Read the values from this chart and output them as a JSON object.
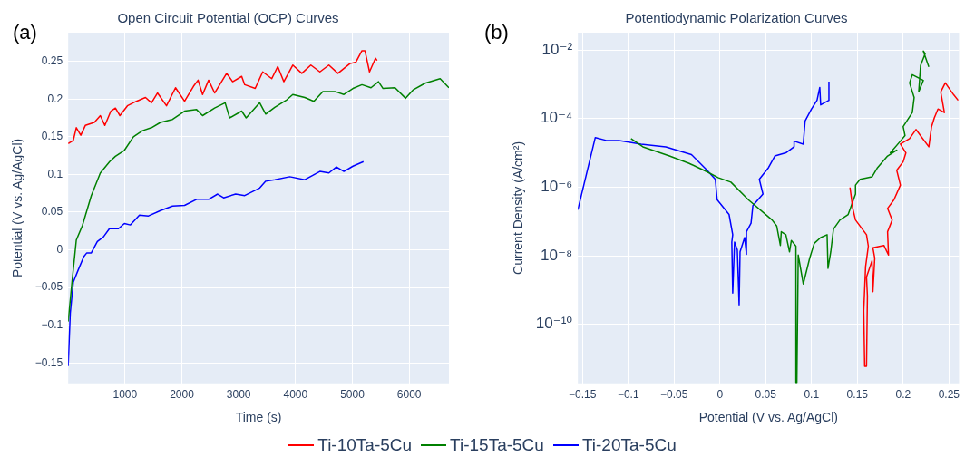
{
  "chart_data": [
    {
      "type": "line",
      "title": "Open Circuit Potential (OCP) Curves",
      "xlabel": "Time (s)",
      "ylabel": "Potential (V vs. Ag/AgCl)",
      "annotations": [
        "(a)"
      ],
      "xlim": [
        0,
        6700
      ],
      "ylim": [
        -0.177,
        0.288
      ],
      "xticks": [
        1000,
        2000,
        3000,
        4000,
        5000,
        6000
      ],
      "yticks": [
        {
          "value": -0.15,
          "label": "−0.15"
        },
        {
          "value": -0.1,
          "label": "−0.1"
        },
        {
          "value": -0.05,
          "label": "−0.05"
        },
        0,
        0.05,
        0.1,
        0.15,
        0.2,
        0.25
      ],
      "grid": true,
      "legend": "bottom",
      "series": [
        {
          "name": "Ti-10Ta-5Cu",
          "color": "#ff0000",
          "x": [
            0,
            90,
            143,
            222,
            302,
            460,
            566,
            646,
            751,
            831,
            910,
            1042,
            1201,
            1360,
            1466,
            1571,
            1730,
            1889,
            2048,
            2206,
            2286,
            2365,
            2471,
            2577,
            2788,
            2894,
            3053,
            3106,
            3291,
            3423,
            3582,
            3688,
            3794,
            3952,
            4111,
            4270,
            4429,
            4587,
            4746,
            4958,
            5063,
            5169,
            5222,
            5302,
            5407,
            5434
          ],
          "values": [
            0.141,
            0.145,
            0.162,
            0.152,
            0.165,
            0.169,
            0.178,
            0.165,
            0.184,
            0.188,
            0.178,
            0.191,
            0.197,
            0.202,
            0.195,
            0.208,
            0.191,
            0.215,
            0.197,
            0.217,
            0.225,
            0.206,
            0.225,
            0.208,
            0.234,
            0.223,
            0.23,
            0.219,
            0.214,
            0.236,
            0.227,
            0.243,
            0.223,
            0.245,
            0.234,
            0.245,
            0.236,
            0.245,
            0.234,
            0.247,
            0.249,
            0.264,
            0.264,
            0.236,
            0.254,
            0.251
          ]
        },
        {
          "name": "Ti-15Ta-5Cu",
          "color": "#008000",
          "x": [
            0,
            63,
            143,
            249,
            407,
            566,
            730,
            831,
            989,
            1148,
            1307,
            1466,
            1624,
            1836,
            2048,
            2259,
            2365,
            2577,
            2762,
            2841,
            3053,
            3132,
            3370,
            3476,
            3635,
            3847,
            3952,
            4164,
            4323,
            4481,
            4693,
            4852,
            5011,
            5169,
            5328,
            5460,
            5540,
            5751,
            5937,
            6069,
            6280,
            6545,
            6700
          ],
          "values": [
            -0.095,
            -0.046,
            0.013,
            0.032,
            0.072,
            0.102,
            0.117,
            0.124,
            0.132,
            0.15,
            0.158,
            0.162,
            0.169,
            0.173,
            0.184,
            0.186,
            0.178,
            0.188,
            0.195,
            0.175,
            0.184,
            0.175,
            0.195,
            0.18,
            0.189,
            0.199,
            0.206,
            0.202,
            0.197,
            0.21,
            0.21,
            0.206,
            0.214,
            0.219,
            0.215,
            0.223,
            0.214,
            0.215,
            0.201,
            0.212,
            0.221,
            0.227,
            0.215
          ]
        },
        {
          "name": "Ti-20Ta-5Cu",
          "color": "#0000ff",
          "x": [
            0,
            37,
            90,
            169,
            275,
            328,
            407,
            513,
            619,
            725,
            884,
            989,
            1095,
            1254,
            1413,
            1624,
            1836,
            2048,
            2259,
            2471,
            2630,
            2735,
            2947,
            3106,
            3370,
            3476,
            3635,
            3899,
            4164,
            4429,
            4587,
            4720,
            4852,
            5011,
            5196
          ],
          "values": [
            -0.154,
            -0.084,
            -0.043,
            -0.028,
            -0.009,
            -0.004,
            -0.004,
            0.011,
            0.017,
            0.028,
            0.028,
            0.035,
            0.033,
            0.046,
            0.045,
            0.052,
            0.058,
            0.059,
            0.067,
            0.067,
            0.074,
            0.069,
            0.074,
            0.072,
            0.082,
            0.091,
            0.093,
            0.097,
            0.093,
            0.104,
            0.102,
            0.11,
            0.104,
            0.111,
            0.117
          ]
        }
      ]
    },
    {
      "type": "line",
      "title": "Potentiodynamic Polarization Curves",
      "xlabel": "Potential (V vs. Ag/AgCl)",
      "ylabel": "Current Density (A/cm²)",
      "annotations": [
        "(b)"
      ],
      "log": "y",
      "xlim": [
        -0.155,
        0.261
      ],
      "ylim": [
        1.9e-12,
        0.032
      ],
      "xticks": [
        {
          "value": -0.15,
          "label": "−0.15"
        },
        {
          "value": -0.1,
          "label": "−0.1"
        },
        {
          "value": -0.05,
          "label": "−0.05"
        },
        0,
        0.05,
        0.1,
        0.15,
        0.2,
        0.25
      ],
      "yticks": [
        {
          "value": 0.01,
          "label": "10⁻²"
        },
        {
          "value": 0.0001,
          "label": "10⁻⁴"
        },
        {
          "value": 1e-06,
          "label": "10⁻⁶"
        },
        {
          "value": 1e-08,
          "label": "10⁻⁸"
        },
        {
          "value": 1e-10,
          "label": "10⁻¹⁰"
        }
      ],
      "grid": true,
      "series": [
        {
          "color": "#ff0000",
          "x": [
            0.142,
            0.145,
            0.148,
            0.16,
            0.162,
            0.159,
            0.157,
            0.158,
            0.16,
            0.161,
            0.16,
            0.166,
            0.167,
            0.169,
            0.167,
            0.179,
            0.184,
            0.183,
            0.188,
            0.183,
            0.19,
            0.197,
            0.193,
            0.2,
            0.203,
            0.197,
            0.207,
            0.214,
            0.228,
            0.231,
            0.234,
            0.238,
            0.245,
            0.241,
            0.246,
            0.255,
            0.26
          ],
          "values": [
            9.8e-07,
            2.4e-07,
            1.1e-07,
            4.1e-08,
            1.9e-08,
            4.8e-09,
            2.5e-10,
            6e-12,
            6e-12,
            6.8e-10,
            2.4e-09,
            7.1e-09,
            8.9e-10,
            8.5e-09,
            1.7e-08,
            2e-08,
            1.05e-08,
            5e-08,
            1.1e-07,
            2.4e-07,
            4.3e-07,
            1.15e-06,
            3.1e-06,
            5.5e-06,
            1e-05,
            1.8e-05,
            2.6e-05,
            4.8e-05,
            1.5e-05,
            5.8e-05,
            0.000105,
            0.00019,
            0.00015,
            0.0006,
            0.0011,
            0.0005,
            0.00034
          ]
        },
        {
          "color": "#008000",
          "x": [
            -0.097,
            -0.084,
            -0.055,
            -0.034,
            -0.014,
            -0.002,
            0.012,
            0.031,
            0.057,
            0.062,
            0.066,
            0.067,
            0.072,
            0.076,
            0.078,
            0.083,
            0.083,
            0.084,
            0.0855,
            0.091,
            0.098,
            0.103,
            0.11,
            0.117,
            0.118,
            0.121,
            0.124,
            0.131,
            0.14,
            0.148,
            0.148,
            0.153,
            0.166,
            0.172,
            0.183,
            0.193,
            0.186,
            0.197,
            0.202,
            0.2,
            0.21,
            0.212,
            0.207,
            0.21,
            0.222,
            0.217,
            0.219,
            0.224,
            0.222,
            0.228
          ],
          "values": [
            2.6e-05,
            1.5e-05,
            8.1e-06,
            5e-06,
            2.8e-06,
            1.9e-06,
            1.4e-06,
            4.3e-07,
            1.1e-07,
            7.4e-08,
            2e-08,
            5e-08,
            4.1e-08,
            1.3e-08,
            2.8e-08,
            1.9e-08,
            2e-12,
            2e-12,
            1.05e-08,
            1.5e-09,
            8.5e-09,
            2.3e-08,
            3.4e-08,
            4.1e-08,
            4.3e-09,
            1.3e-08,
            6e-08,
            1.1e-07,
            1.6e-07,
            6.3e-07,
            1.15e-06,
            1.7e-06,
            2e-06,
            3.7e-06,
            8.1e-06,
            1.2e-05,
            1e-05,
            2.2e-05,
            3.2e-05,
            5.8e-05,
            0.00015,
            0.00041,
            0.0011,
            0.0019,
            0.0013,
            0.0006,
            0.0035,
            0.0078,
            0.0093,
            0.0032
          ]
        },
        {
          "color": "#0000ff",
          "x": [
            -0.155,
            -0.136,
            -0.124,
            -0.11,
            -0.086,
            -0.059,
            -0.031,
            -0.014,
            -0.005,
            -0.003,
            0.01,
            0.014,
            0.013,
            0.014,
            0.016,
            0.019,
            0.021,
            0.022,
            0.027,
            0.029,
            0.029,
            0.034,
            0.036,
            0.047,
            0.043,
            0.053,
            0.06,
            0.072,
            0.081,
            0.081,
            0.091,
            0.093,
            0.1,
            0.106,
            0.109,
            0.11,
            0.119,
            0.119
          ],
          "values": [
            2.2e-07,
            2.8e-05,
            2.3e-05,
            2.3e-05,
            1.8e-05,
            1.5e-05,
            8.9e-06,
            3.1e-06,
            1.7e-06,
            4.3e-07,
            1.6e-07,
            4.1e-08,
            2.5e-08,
            8.1e-10,
            2.5e-08,
            1.5e-08,
            3.7e-10,
            1.3e-08,
            3.4e-08,
            1.1e-08,
            5e-08,
            8.9e-08,
            2.9e-07,
            6.3e-07,
            1.7e-06,
            3.7e-06,
            8.1e-06,
            1e-05,
            1.5e-05,
            2.2e-05,
            1.8e-05,
            8.5e-05,
            0.00019,
            0.00034,
            0.00081,
            0.00025,
            0.00034,
            0.0012
          ]
        }
      ]
    }
  ]
}
